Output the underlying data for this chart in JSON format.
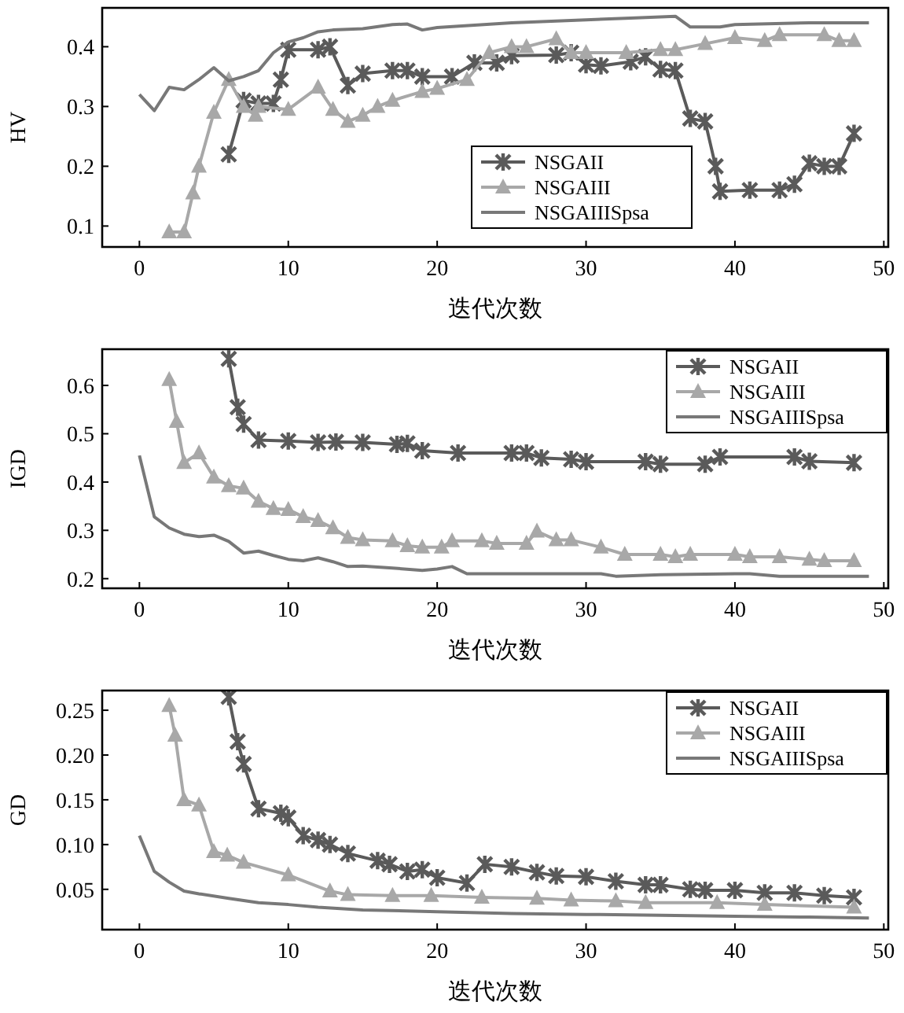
{
  "chart_data": [
    {
      "type": "line",
      "xlabel": "迭代次数",
      "ylabel": "HV",
      "xlim": [
        -2.5,
        50.3
      ],
      "ylim": [
        0.065,
        0.465
      ],
      "xticks": [
        0,
        10,
        20,
        30,
        40,
        50
      ],
      "yticks": [
        0.1,
        0.2,
        0.3,
        0.4
      ],
      "legend": "bottom",
      "grid": false,
      "line_style": "solid",
      "series": [
        {
          "name": "NSGAII",
          "color": "#5a5a5a",
          "marker": "cross",
          "x": [
            6,
            7,
            8,
            9,
            9.5,
            10,
            12,
            12.8,
            14,
            15,
            17,
            18,
            19,
            21,
            22.5,
            24,
            25,
            28,
            29,
            30,
            31,
            33,
            34,
            35,
            36,
            37,
            38,
            38.7,
            39,
            41,
            43,
            44,
            45,
            46,
            47,
            48
          ],
          "values": [
            0.22,
            0.31,
            0.305,
            0.305,
            0.345,
            0.395,
            0.395,
            0.4,
            0.335,
            0.355,
            0.36,
            0.36,
            0.35,
            0.35,
            0.373,
            0.373,
            0.385,
            0.386,
            0.39,
            0.37,
            0.368,
            0.375,
            0.383,
            0.362,
            0.36,
            0.28,
            0.275,
            0.2,
            0.158,
            0.16,
            0.16,
            0.17,
            0.205,
            0.2,
            0.2,
            0.255
          ]
        },
        {
          "name": "NSGAIII",
          "color": "#a8a8a8",
          "marker": "triangle",
          "x": [
            2,
            3,
            3.6,
            4,
            5,
            6,
            7,
            7.8,
            8,
            10,
            12,
            13,
            14,
            15,
            16,
            17,
            19,
            20,
            22,
            23.5,
            25,
            26,
            28,
            29,
            30,
            32.7,
            35,
            36,
            38,
            40,
            42,
            43,
            46,
            47,
            48
          ],
          "values": [
            0.09,
            0.09,
            0.155,
            0.2,
            0.29,
            0.345,
            0.3,
            0.285,
            0.3,
            0.295,
            0.332,
            0.295,
            0.275,
            0.285,
            0.3,
            0.31,
            0.325,
            0.33,
            0.345,
            0.39,
            0.4,
            0.4,
            0.413,
            0.39,
            0.39,
            0.39,
            0.395,
            0.395,
            0.405,
            0.415,
            0.41,
            0.42,
            0.42,
            0.41,
            0.41
          ]
        },
        {
          "name": "NSGAIIISpsa",
          "color": "#787878",
          "marker": "none",
          "x": [
            0,
            1,
            2,
            3,
            4,
            5,
            6,
            7,
            8,
            9,
            10,
            11,
            12,
            13,
            15,
            17,
            18,
            19,
            20,
            25,
            30,
            33,
            36,
            37,
            39,
            40,
            45,
            49
          ],
          "values": [
            0.32,
            0.293,
            0.332,
            0.328,
            0.345,
            0.365,
            0.343,
            0.35,
            0.36,
            0.39,
            0.408,
            0.415,
            0.425,
            0.428,
            0.43,
            0.437,
            0.438,
            0.428,
            0.432,
            0.44,
            0.445,
            0.448,
            0.451,
            0.433,
            0.433,
            0.437,
            0.44,
            0.44
          ]
        }
      ]
    },
    {
      "type": "line",
      "xlabel": "迭代次数",
      "ylabel": "IGD",
      "xlim": [
        -2.5,
        50.3
      ],
      "ylim": [
        0.18,
        0.675
      ],
      "xticks": [
        0,
        10,
        20,
        30,
        40,
        50
      ],
      "yticks": [
        0.2,
        0.3,
        0.4,
        0.5,
        0.6
      ],
      "legend": "top right",
      "grid": false,
      "line_style": "solid",
      "series": [
        {
          "name": "NSGAII",
          "color": "#5a5a5a",
          "marker": "cross",
          "x": [
            6,
            6.6,
            7,
            8,
            10,
            12,
            13.2,
            15,
            17.3,
            18,
            19,
            21.4,
            25,
            26,
            27,
            29,
            30,
            34,
            35,
            38,
            39,
            44,
            45,
            48
          ],
          "values": [
            0.655,
            0.555,
            0.52,
            0.487,
            0.485,
            0.482,
            0.483,
            0.482,
            0.478,
            0.48,
            0.465,
            0.46,
            0.46,
            0.46,
            0.45,
            0.447,
            0.442,
            0.442,
            0.437,
            0.437,
            0.452,
            0.452,
            0.443,
            0.44
          ]
        },
        {
          "name": "NSGAIII",
          "color": "#a8a8a8",
          "marker": "triangle",
          "x": [
            2,
            2.5,
            3,
            4,
            5,
            6,
            7,
            8,
            9,
            10,
            11,
            12,
            13,
            14,
            15,
            17,
            18,
            19,
            20.3,
            21,
            23,
            24,
            26,
            26.7,
            28,
            29,
            31,
            32.6,
            35,
            36,
            37,
            40,
            41,
            43,
            45,
            46,
            48
          ],
          "values": [
            0.612,
            0.525,
            0.44,
            0.46,
            0.41,
            0.392,
            0.387,
            0.36,
            0.345,
            0.343,
            0.328,
            0.32,
            0.305,
            0.285,
            0.28,
            0.278,
            0.268,
            0.265,
            0.265,
            0.278,
            0.278,
            0.273,
            0.273,
            0.298,
            0.28,
            0.28,
            0.265,
            0.25,
            0.25,
            0.245,
            0.25,
            0.25,
            0.245,
            0.245,
            0.24,
            0.237,
            0.237
          ]
        },
        {
          "name": "NSGAIIISpsa",
          "color": "#787878",
          "marker": "none",
          "x": [
            0,
            1,
            2,
            3,
            4,
            5,
            6,
            7,
            8,
            9,
            10,
            11,
            12,
            13,
            14,
            15,
            17,
            19,
            20,
            21,
            22,
            30,
            31,
            32,
            35,
            40,
            41,
            43,
            49
          ],
          "values": [
            0.455,
            0.328,
            0.305,
            0.292,
            0.287,
            0.29,
            0.277,
            0.253,
            0.257,
            0.248,
            0.24,
            0.237,
            0.243,
            0.235,
            0.225,
            0.226,
            0.222,
            0.217,
            0.22,
            0.225,
            0.21,
            0.21,
            0.21,
            0.205,
            0.208,
            0.21,
            0.21,
            0.205,
            0.205
          ]
        }
      ]
    },
    {
      "type": "line",
      "xlabel": "迭代次数",
      "ylabel": "GD",
      "xlim": [
        -2.5,
        50.3
      ],
      "ylim": [
        0.005,
        0.272
      ],
      "xticks": [
        0,
        10,
        20,
        30,
        40,
        50
      ],
      "yticks": [
        {
          "value": 0.05,
          "label": "0.05"
        },
        {
          "value": 0.1,
          "label": "0.10"
        },
        {
          "value": 0.15,
          "label": "0.15"
        },
        {
          "value": 0.2,
          "label": "0.20"
        },
        {
          "value": 0.25,
          "label": "0.25"
        }
      ],
      "legend": "top right",
      "grid": false,
      "line_style": "solid",
      "series": [
        {
          "name": "NSGAII",
          "color": "#5a5a5a",
          "marker": "cross",
          "x": [
            6,
            6.6,
            7,
            8,
            9.5,
            10,
            11,
            12,
            12.8,
            14,
            16,
            16.8,
            18,
            19,
            20,
            22,
            23.2,
            25,
            26.7,
            28,
            30,
            32,
            34,
            35,
            37,
            38,
            40,
            42,
            44,
            46,
            48
          ],
          "values": [
            0.265,
            0.215,
            0.19,
            0.14,
            0.135,
            0.13,
            0.11,
            0.105,
            0.1,
            0.09,
            0.082,
            0.078,
            0.07,
            0.072,
            0.063,
            0.057,
            0.078,
            0.075,
            0.069,
            0.065,
            0.064,
            0.059,
            0.055,
            0.055,
            0.05,
            0.049,
            0.049,
            0.046,
            0.046,
            0.043,
            0.041
          ]
        },
        {
          "name": "NSGAIII",
          "color": "#a8a8a8",
          "marker": "triangle",
          "x": [
            2,
            2.4,
            3,
            4,
            5,
            5.9,
            7,
            10,
            12.8,
            14,
            17,
            19.6,
            23,
            26.7,
            29,
            32,
            34,
            38.8,
            42,
            48
          ],
          "values": [
            0.255,
            0.222,
            0.15,
            0.144,
            0.092,
            0.088,
            0.08,
            0.066,
            0.048,
            0.044,
            0.043,
            0.043,
            0.041,
            0.04,
            0.038,
            0.037,
            0.035,
            0.035,
            0.033,
            0.03
          ]
        },
        {
          "name": "NSGAIIISpsa",
          "color": "#787878",
          "marker": "none",
          "x": [
            0,
            1,
            2,
            3,
            4,
            6,
            8,
            10,
            12,
            15,
            20,
            25,
            30,
            35,
            40,
            45,
            49
          ],
          "values": [
            0.11,
            0.07,
            0.058,
            0.048,
            0.045,
            0.04,
            0.035,
            0.033,
            0.03,
            0.027,
            0.025,
            0.023,
            0.022,
            0.021,
            0.02,
            0.019,
            0.018
          ]
        }
      ]
    }
  ]
}
